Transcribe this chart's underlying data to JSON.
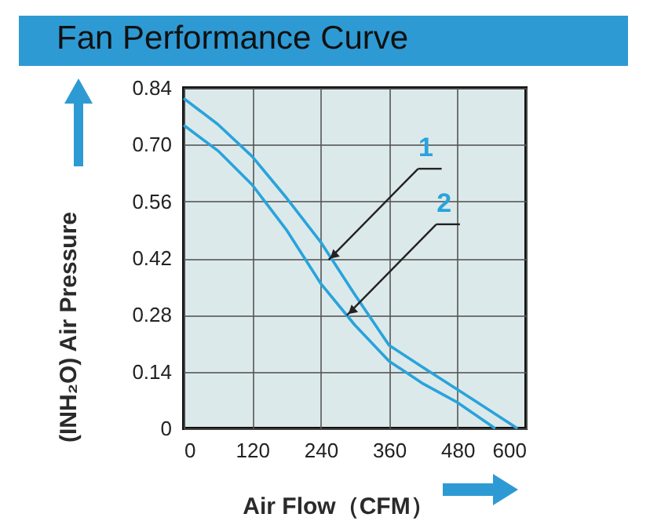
{
  "chart_data": {
    "type": "line",
    "title": "Fan Performance Curve",
    "xlabel": "Air Flow（CFM）",
    "ylabel": "(INH₂O)  Air Pressure",
    "series": [
      {
        "color": "#29a3dc",
        "x": [
          0,
          60,
          120,
          180,
          240,
          300,
          360,
          420,
          480,
          585
        ],
        "values": [
          0.814,
          0.75,
          0.671,
          0.569,
          0.46,
          0.33,
          0.205,
          0.15,
          0.096,
          0
        ]
      },
      {
        "color": "#29a3dc",
        "x": [
          0,
          60,
          120,
          180,
          240,
          300,
          360,
          420,
          480,
          546
        ],
        "values": [
          0.748,
          0.685,
          0.601,
          0.49,
          0.358,
          0.255,
          0.166,
          0.11,
          0.064,
          0
        ]
      }
    ],
    "annotations": [
      {
        "text": "1",
        "x": 254,
        "y": 0.416
      },
      {
        "text": "2",
        "x": 286,
        "y": 0.279
      }
    ],
    "xlim": [
      0,
      600
    ],
    "xticks": [
      0,
      120,
      240,
      360,
      480,
      600
    ],
    "ylim": [
      0,
      0.84
    ],
    "yticks": [
      0,
      0.14,
      0.28,
      0.42,
      0.56,
      {
        "value": 0.7,
        "label": "0.70"
      },
      0.84
    ],
    "grid": true,
    "marker": "none",
    "line_style": "solid"
  }
}
